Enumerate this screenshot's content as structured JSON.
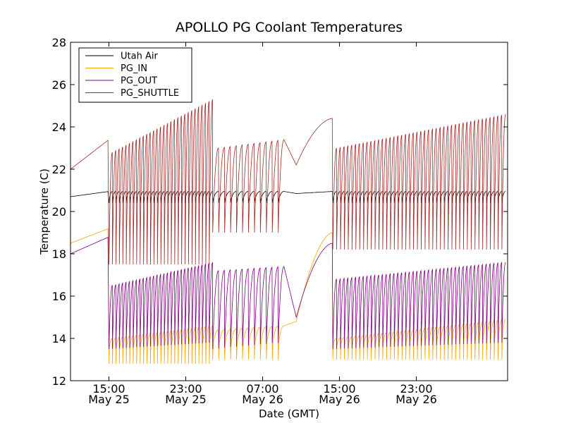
{
  "chart_data": {
    "type": "line",
    "title": "APOLLO PG Coolant Temperatures",
    "xlabel": "Date (GMT)",
    "ylabel": "Temperature (C)",
    "xlim_hours": [
      0,
      45.5
    ],
    "ylim": [
      12,
      28
    ],
    "y_ticks": [
      12,
      14,
      16,
      18,
      20,
      22,
      24,
      26,
      28
    ],
    "x_ticks": [
      {
        "hour": 4,
        "time": "15:00",
        "date": "May 25"
      },
      {
        "hour": 12,
        "time": "23:00",
        "date": "May 25"
      },
      {
        "hour": 20,
        "time": "07:00",
        "date": "May 26"
      },
      {
        "hour": 28,
        "time": "15:00",
        "date": "May 26"
      },
      {
        "hour": 36,
        "time": "23:00",
        "date": "May 26"
      }
    ],
    "legend_position": "top-left",
    "series": [
      {
        "name": "Utah Air",
        "color": "#000000"
      },
      {
        "name": "PG_IN",
        "color": "#ffa500"
      },
      {
        "name": "PG_OUT",
        "color": "#800080"
      },
      {
        "name": "PG_SHUTTLE",
        "color": "#a52a2a"
      }
    ],
    "cycle_segments": [
      {
        "start": 4,
        "end": 14.8,
        "period": 0.36,
        "hi_start": 22.8,
        "hi_end": 25.3,
        "lo": 17.5,
        "out_hi_start": 16.5,
        "out_hi_end": 17.6,
        "in_hi_start": 14.0,
        "in_hi_end": 14.6,
        "in_lo": 12.8
      },
      {
        "start": 14.8,
        "end": 22.5,
        "period": 0.62,
        "hi_start": 23.0,
        "hi_end": 23.4,
        "lo": 19.0,
        "out_hi_start": 17.2,
        "out_hi_end": 17.4,
        "in_hi_start": 14.4,
        "in_hi_end": 14.6,
        "in_lo": 13.0
      },
      {
        "start": 23.5,
        "end": 27.3,
        "period": 0,
        "note": "slow rise"
      },
      {
        "start": 27.3,
        "end": 45.5,
        "period": 0.4,
        "hi_start": 23.0,
        "hi_end": 24.6,
        "lo": 18.2,
        "out_hi_start": 16.8,
        "out_hi_end": 17.6,
        "in_hi_start": 14.0,
        "in_hi_end": 14.9,
        "in_lo": 13.0
      }
    ],
    "start_values": {
      "utah_air": 20.7,
      "pg_in": 18.5,
      "pg_out": 18.0,
      "pg_shuttle": 22.0
    },
    "pre_drop_values": {
      "pg_in": 19.2,
      "pg_out": 18.8,
      "pg_shuttle": 23.4
    },
    "slow_rise_end_values": {
      "pg_in": 19.0,
      "pg_out": 18.5,
      "pg_shuttle": 24.4
    }
  }
}
